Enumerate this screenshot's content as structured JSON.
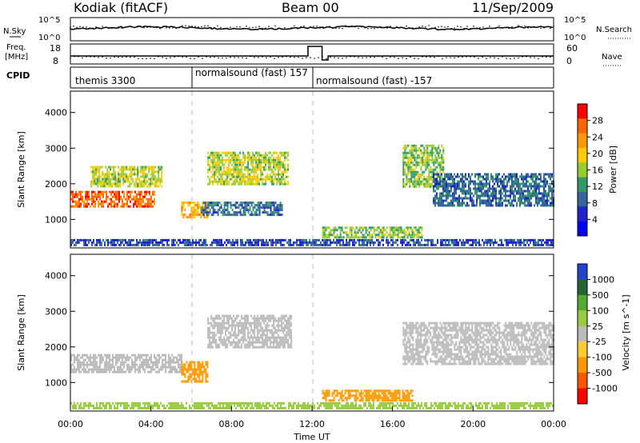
{
  "header": {
    "station": "Kodiak (fitACF)",
    "beam": "Beam 00",
    "date": "11/Sep/2009"
  },
  "side_labels": {
    "nsky": "N.Sky",
    "freq_line1": "Freq.",
    "freq_line2": "[MHz]",
    "cpid": "CPID",
    "nsearch": "N.Search",
    "nave": "Nave"
  },
  "strip_ticks": {
    "noise_left": [
      "10^5",
      "10^0"
    ],
    "noise_right": [
      "10^5",
      "10^0"
    ],
    "freq_left": [
      "18",
      "8"
    ],
    "freq_right": [
      "60",
      "0"
    ]
  },
  "cpid_segments": [
    {
      "label": "themis 3300",
      "start_h": 0.0
    },
    {
      "label": "normalsound (fast) 157",
      "start_h": 6.0
    },
    {
      "label": "normalsound (fast) -157",
      "start_h": 12.0
    }
  ],
  "power_colorbar": {
    "label": "Power [dB]",
    "ticks": [
      "28",
      "24",
      "20",
      "16",
      "12",
      "8",
      "4"
    ],
    "colors": [
      "#ff0000",
      "#ff6600",
      "#ff9900",
      "#ffcc00",
      "#99cc33",
      "#339966",
      "#336699",
      "#2222cc",
      "#0000ff"
    ]
  },
  "velocity_colorbar": {
    "label": "Velocity [m s^-1]",
    "ticks": [
      "1000",
      "500",
      "100",
      "25",
      "-25",
      "-100",
      "-500",
      "-1000"
    ],
    "colors": [
      "#2244cc",
      "#226633",
      "#55aa33",
      "#99cc44",
      "#bbbbbb",
      "#ffcc33",
      "#ff9900",
      "#ff5500",
      "#ff0000"
    ]
  },
  "chart_data": {
    "type": "heatmap",
    "xlabel": "Time UT",
    "xticks": [
      "00:00",
      "04:00",
      "08:00",
      "12:00",
      "16:00",
      "20:00",
      "00:00"
    ],
    "x_hours": [
      0,
      4,
      8,
      12,
      16,
      20,
      24
    ],
    "ylabel": "Slant Range [km]",
    "yticks": [
      "4000",
      "3000",
      "2000",
      "1000"
    ],
    "y_values": [
      4000,
      3000,
      2000,
      1000
    ],
    "ylim": [
      200,
      4600
    ],
    "power_panel": {
      "echo_regions": [
        {
          "t0": 0.0,
          "t1": 4.2,
          "r0": 1350,
          "r1": 1800,
          "value_db": 26
        },
        {
          "t0": 1.0,
          "t1": 4.5,
          "r0": 1900,
          "r1": 2500,
          "value_db": 16
        },
        {
          "t0": 5.5,
          "t1": 6.8,
          "r0": 1050,
          "r1": 1500,
          "value_db": 22
        },
        {
          "t0": 6.5,
          "t1": 10.5,
          "r0": 1100,
          "r1": 1500,
          "value_db": 8
        },
        {
          "t0": 6.8,
          "t1": 10.8,
          "r0": 2000,
          "r1": 2900,
          "value_db": 16
        },
        {
          "t0": 12.5,
          "t1": 17.5,
          "r0": 500,
          "r1": 800,
          "value_db": 14
        },
        {
          "t0": 16.5,
          "t1": 18.5,
          "r0": 1900,
          "r1": 3100,
          "value_db": 14
        },
        {
          "t0": 18.0,
          "t1": 24.0,
          "r0": 1400,
          "r1": 2300,
          "value_db": 8
        },
        {
          "t0": 0.0,
          "t1": 24.0,
          "r0": 250,
          "r1": 450,
          "value_db": 6
        }
      ]
    },
    "velocity_panel": {
      "echo_regions": [
        {
          "t0": 0.0,
          "t1": 5.5,
          "r0": 1300,
          "r1": 1800,
          "value_ms": 0
        },
        {
          "t0": 5.5,
          "t1": 6.8,
          "r0": 1000,
          "r1": 1600,
          "value_ms": -150
        },
        {
          "t0": 6.8,
          "t1": 11.0,
          "r0": 2000,
          "r1": 2900,
          "value_ms": 0
        },
        {
          "t0": 12.5,
          "t1": 17.0,
          "r0": 500,
          "r1": 800,
          "value_ms": -120
        },
        {
          "t0": 16.5,
          "t1": 24.0,
          "r0": 1500,
          "r1": 2700,
          "value_ms": 0
        },
        {
          "t0": 0.0,
          "t1": 24.0,
          "r0": 250,
          "r1": 450,
          "value_ms": 50
        }
      ]
    }
  }
}
